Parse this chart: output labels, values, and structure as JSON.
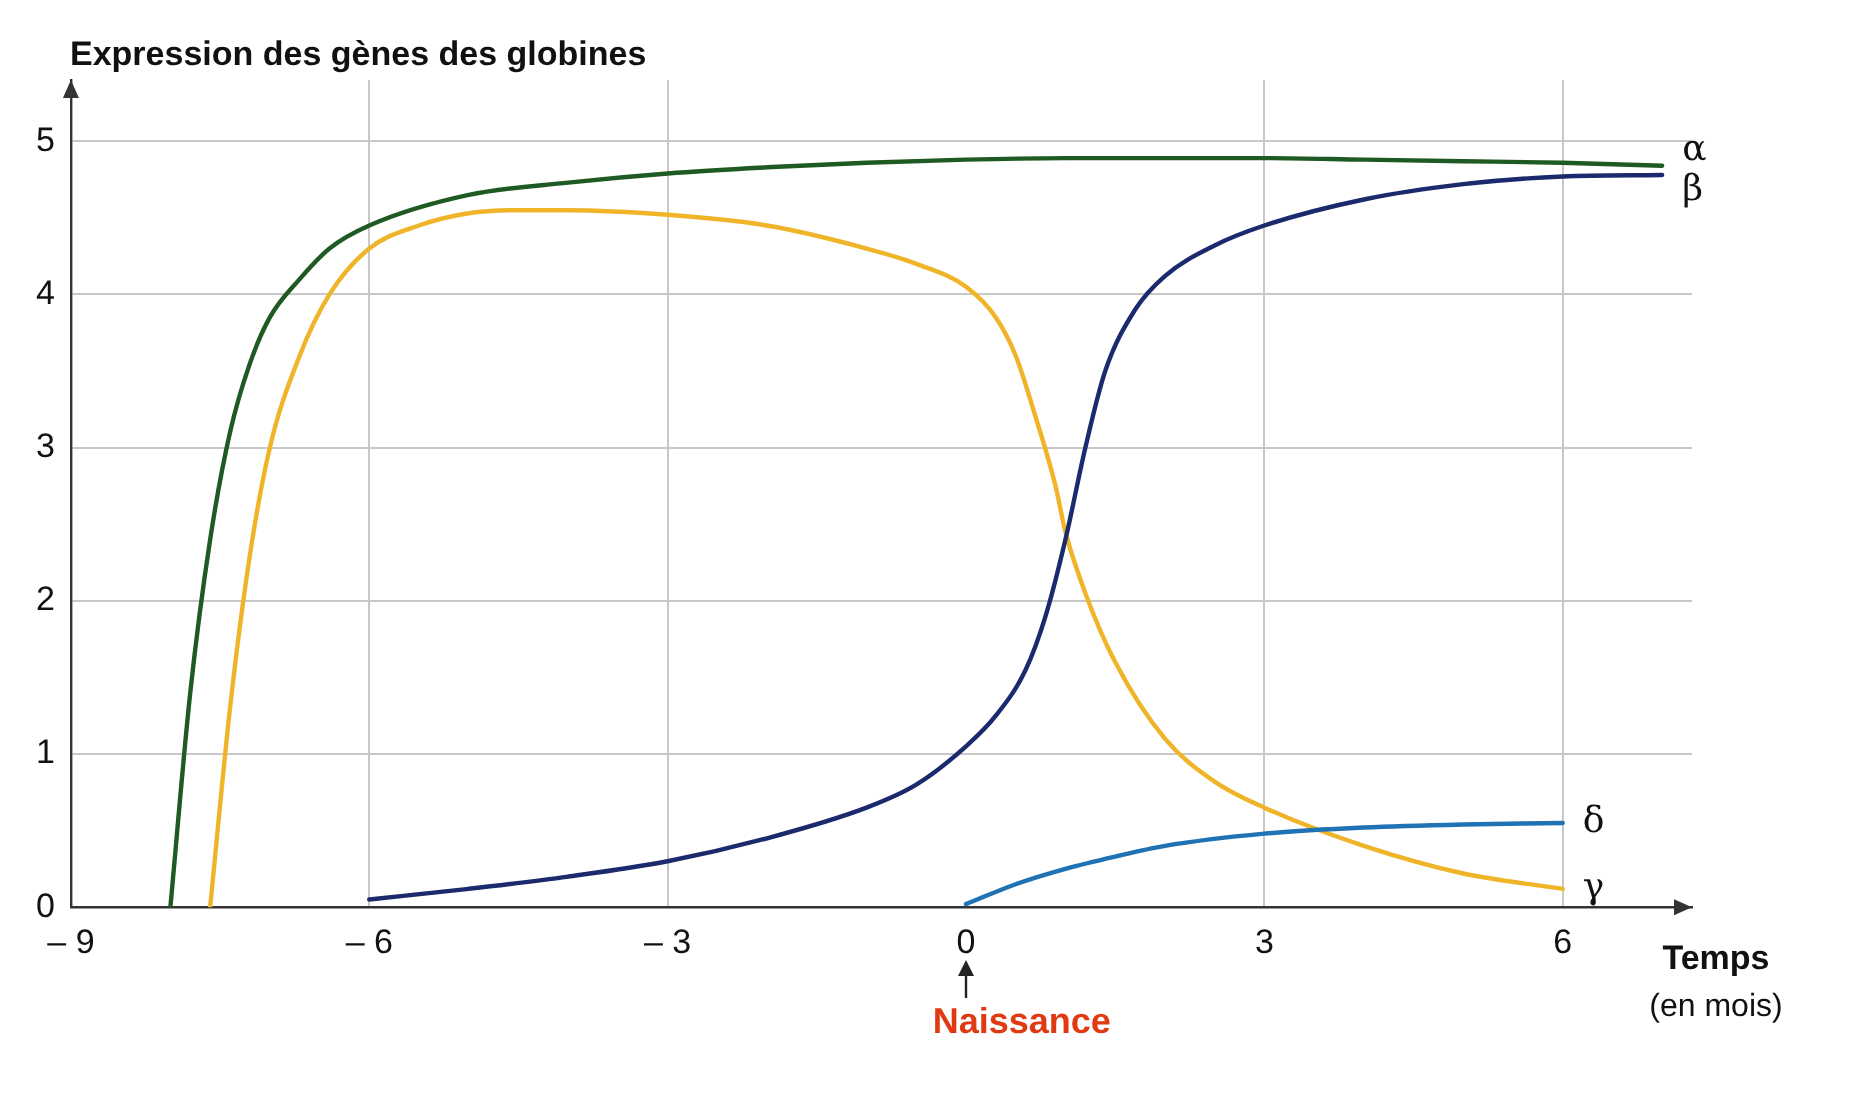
{
  "chart_data": {
    "type": "line",
    "ylabel": "Expression des gènes des globines",
    "xlabel": "Temps (en mois)",
    "xlim": [
      -9,
      7.3
    ],
    "ylim": [
      0,
      5.4
    ],
    "xticks": [
      {
        "value": -9,
        "label": "– 9"
      },
      {
        "value": -6,
        "label": "– 6"
      },
      {
        "value": -3,
        "label": "– 3"
      },
      0,
      3,
      6
    ],
    "yticks": [
      0,
      1,
      2,
      3,
      4,
      5
    ],
    "grid": true,
    "legend": false,
    "marker": "none",
    "line_style": "solid",
    "annotations": [
      "Naissance"
    ],
    "series": [
      {
        "name": "α",
        "color": "#1e5a22",
        "x": [
          -8,
          -7.8,
          -7.6,
          -7.4,
          -7.2,
          -7,
          -6.7,
          -6.4,
          -6,
          -5,
          -4,
          -3,
          -2,
          -1,
          0,
          1,
          2,
          3,
          4,
          5,
          6,
          7
        ],
        "values": [
          0,
          1.4,
          2.4,
          3.1,
          3.55,
          3.85,
          4.1,
          4.3,
          4.45,
          4.65,
          4.73,
          4.79,
          4.83,
          4.86,
          4.88,
          4.89,
          4.89,
          4.89,
          4.88,
          4.87,
          4.86,
          4.84
        ]
      },
      {
        "name": "β",
        "color": "#1a2a6c",
        "x": [
          -6,
          -5,
          -4,
          -3,
          -2,
          -1,
          -0.5,
          0,
          0.3,
          0.6,
          0.8,
          1,
          1.2,
          1.4,
          1.7,
          2,
          2.5,
          3,
          4,
          5,
          6,
          7
        ],
        "values": [
          0.05,
          0.12,
          0.2,
          0.3,
          0.45,
          0.65,
          0.8,
          1.05,
          1.25,
          1.55,
          1.9,
          2.4,
          3.0,
          3.5,
          3.9,
          4.12,
          4.32,
          4.45,
          4.62,
          4.72,
          4.77,
          4.78
        ]
      },
      {
        "name": "δ",
        "color": "#1f72b4",
        "x": [
          0,
          0.5,
          1,
          1.5,
          2,
          3,
          4,
          5,
          6
        ],
        "values": [
          0.02,
          0.15,
          0.25,
          0.33,
          0.4,
          0.48,
          0.52,
          0.54,
          0.55
        ]
      },
      {
        "name": "γ",
        "color": "#f0b429",
        "x": [
          -7.6,
          -7.4,
          -7.2,
          -7,
          -6.7,
          -6.4,
          -6,
          -5.5,
          -5,
          -4.5,
          -4,
          -3,
          -2,
          -1,
          -0.5,
          0,
          0.3,
          0.5,
          0.7,
          0.9,
          1,
          1.2,
          1.5,
          2,
          2.5,
          3,
          4,
          5,
          6
        ],
        "values": [
          0,
          1.3,
          2.3,
          3.0,
          3.6,
          4.0,
          4.3,
          4.45,
          4.53,
          4.55,
          4.55,
          4.52,
          4.45,
          4.3,
          4.2,
          4.05,
          3.85,
          3.6,
          3.2,
          2.75,
          2.45,
          2.05,
          1.6,
          1.1,
          0.82,
          0.65,
          0.4,
          0.22,
          0.12
        ]
      }
    ]
  }
}
